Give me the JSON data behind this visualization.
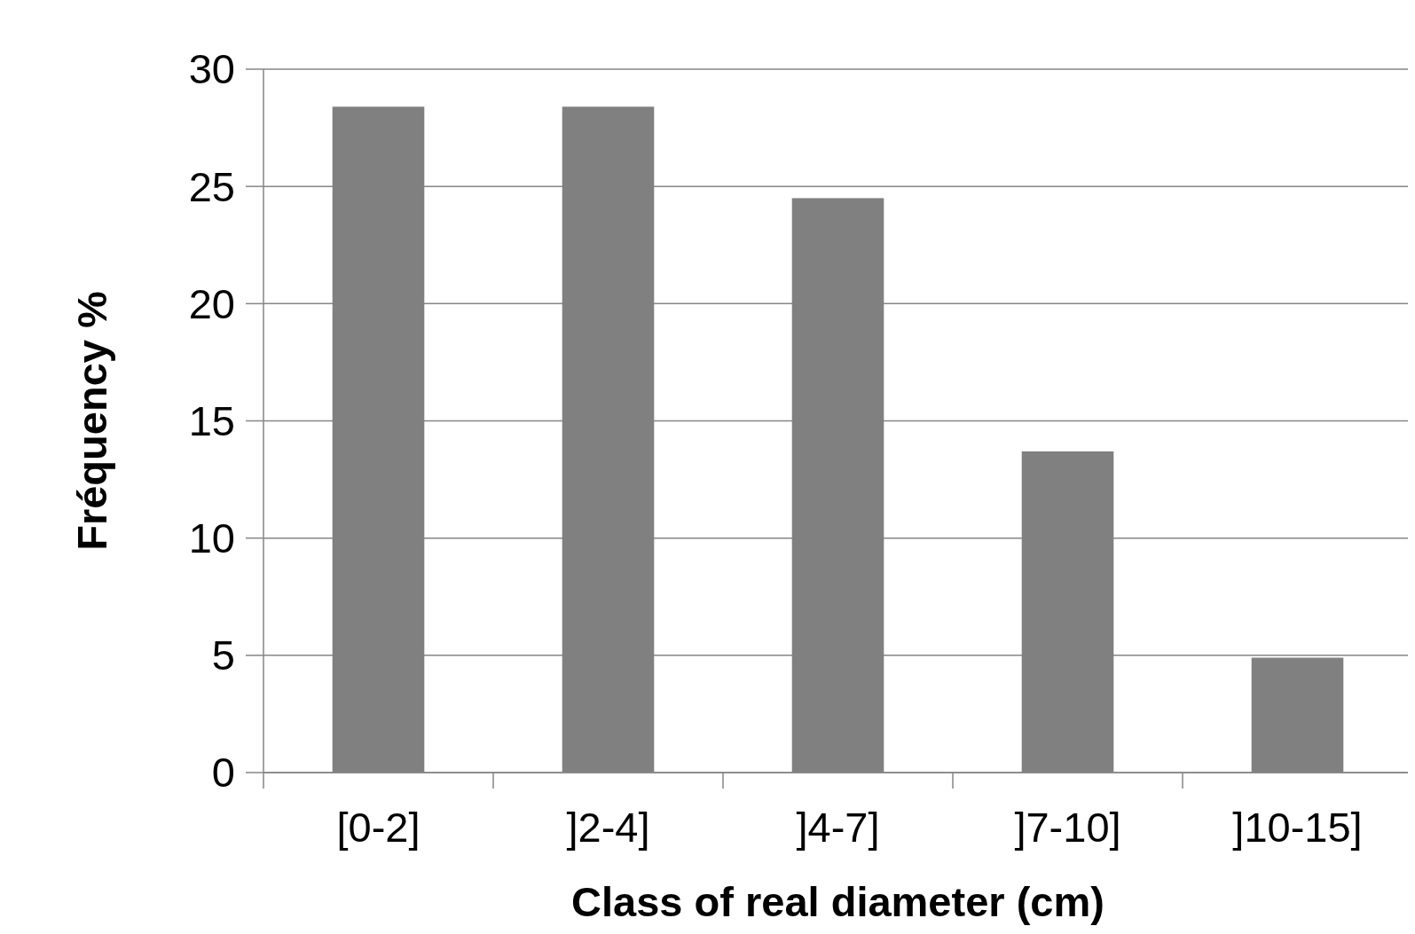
{
  "chart_data": {
    "type": "bar",
    "xlabel": "Class of real diameter (cm)",
    "ylabel": "Fréquency %",
    "categories": [
      "[0-2]",
      "]2-4]",
      "]4-7]",
      "]7-10]",
      "]10-15]"
    ],
    "values": [
      28.4,
      28.4,
      24.5,
      13.7,
      4.9
    ],
    "color": "#808080",
    "ylim": [
      0,
      30
    ],
    "yticks": [
      0,
      5,
      10,
      15,
      20,
      25,
      30
    ],
    "grid": "y"
  }
}
